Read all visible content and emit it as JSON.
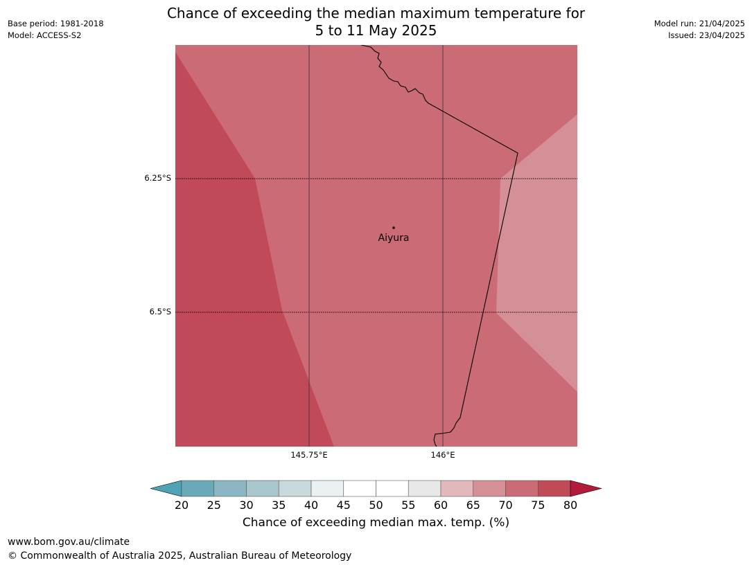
{
  "header": {
    "title_line1": "Chance of exceeding the median maximum temperature for",
    "title_line2": "5 to 11 May 2025",
    "base_period": "Base period: 1981-2018",
    "model": "Model: ACCESS-S2",
    "model_run": "Model run: 21/04/2025",
    "issued": "Issued: 23/04/2025"
  },
  "map": {
    "lat_labels": [
      "6.25°S",
      "6.5°S"
    ],
    "lon_labels": [
      "145.75°E",
      "146°E"
    ],
    "place": {
      "name": "Aiyura"
    },
    "regions": [
      {
        "name": "75-80%",
        "color": "#c04a58"
      },
      {
        "name": "70-75%",
        "color": "#ca6b76"
      },
      {
        "name": "65-70%",
        "color": "#d48f97"
      }
    ]
  },
  "colorbar": {
    "ticks": [
      "20",
      "25",
      "30",
      "35",
      "40",
      "45",
      "50",
      "55",
      "60",
      "65",
      "70",
      "75",
      "80"
    ],
    "colors": [
      "#6aaab8",
      "#8bb7c4",
      "#a8c6cc",
      "#c9dadd",
      "#eaf1f3",
      "#ffffff",
      "#ffffff",
      "#e8e8e8",
      "#e2b8bc",
      "#d48f97",
      "#ca6b76",
      "#c04a58"
    ],
    "under_color": "#4ea3b5",
    "over_color": "#b31b3a",
    "label": "Chance of exceeding median max. temp. (%)"
  },
  "footer": {
    "url": "www.bom.gov.au/climate",
    "copyright": "© Commonwealth of Australia 2025, Australian Bureau of Meteorology"
  }
}
